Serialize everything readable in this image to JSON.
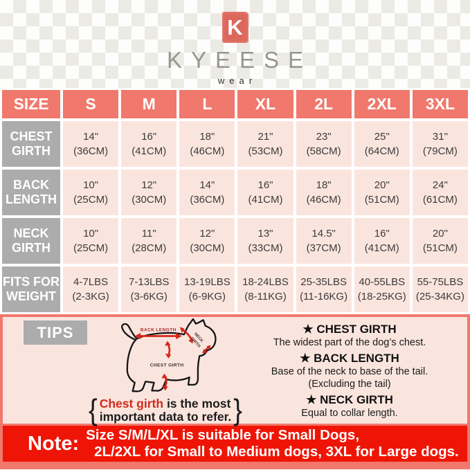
{
  "colors": {
    "accent_salmon": "#F0786C",
    "label_gray": "#ACACAC",
    "cell_pink": "#FAE5DE",
    "note_red": "#EF1506",
    "arrow_red": "#D3281C"
  },
  "brand": {
    "logo_letter": "K",
    "name": "KYEESE",
    "subtitle": "wear"
  },
  "size_table": {
    "corner_label": "SIZE",
    "sizes": [
      "S",
      "M",
      "L",
      "XL",
      "2L",
      "2XL",
      "3XL"
    ],
    "rows": [
      {
        "label_lines": [
          "CHEST",
          "GIRTH"
        ],
        "cells": [
          [
            "14\"",
            "(36CM)"
          ],
          [
            "16\"",
            "(41CM)"
          ],
          [
            "18\"",
            "(46CM)"
          ],
          [
            "21\"",
            "(53CM)"
          ],
          [
            "23\"",
            "(58CM)"
          ],
          [
            "25\"",
            "(64CM)"
          ],
          [
            "31\"",
            "(79CM)"
          ]
        ]
      },
      {
        "label_lines": [
          "BACK",
          "LENGTH"
        ],
        "cells": [
          [
            "10\"",
            "(25CM)"
          ],
          [
            "12\"",
            "(30CM)"
          ],
          [
            "14\"",
            "(36CM)"
          ],
          [
            "16\"",
            "(41CM)"
          ],
          [
            "18\"",
            "(46CM)"
          ],
          [
            "20\"",
            "(51CM)"
          ],
          [
            "24\"",
            "(61CM)"
          ]
        ]
      },
      {
        "label_lines": [
          "NECK",
          "GIRTH"
        ],
        "cells": [
          [
            "10\"",
            "(25CM)"
          ],
          [
            "11\"",
            "(28CM)"
          ],
          [
            "12\"",
            "(30CM)"
          ],
          [
            "13\"",
            "(33CM)"
          ],
          [
            "14.5\"",
            "(37CM)"
          ],
          [
            "16\"",
            "(41CM)"
          ],
          [
            "20\"",
            "(51CM)"
          ]
        ]
      },
      {
        "label_lines": [
          "FITS FOR",
          "WEIGHT"
        ],
        "cells": [
          [
            "4-7LBS",
            "(2-3KG)"
          ],
          [
            "7-13LBS",
            "(3-6KG)"
          ],
          [
            "13-19LBS",
            "(6-9KG)"
          ],
          [
            "18-24LBS",
            "(8-11KG)"
          ],
          [
            "25-35LBS",
            "(11-16KG)"
          ],
          [
            "40-55LBS",
            "(18-25KG)"
          ],
          [
            "55-75LBS",
            "(25-34KG)"
          ]
        ]
      }
    ]
  },
  "tips": {
    "label": "TIPS",
    "star": "★",
    "diagram": {
      "back_label": "BACK LENGTH",
      "chest_label": "CHEST GIRTH",
      "neck_label_line1": "NECK",
      "neck_label_line2": "GIRTH"
    },
    "callout": {
      "open_brace": "{",
      "highlight": "Chest girth",
      "rest": " is the most",
      "line2": "important data to refer.",
      "close_brace": "}"
    },
    "items": [
      {
        "title": "CHEST GIRTH",
        "desc": [
          "The widest part of the dog’s chest."
        ]
      },
      {
        "title": "BACK LENGTH",
        "desc": [
          "Base of the neck to base of the tail.",
          "(Excluding the tail)"
        ]
      },
      {
        "title": "NECK GIRTH",
        "desc": [
          "Equal to collar length."
        ]
      }
    ]
  },
  "note": {
    "label": "Note:",
    "line1": "Size S/M/L/XL is suitable for Small Dogs,",
    "line2": "2L/2XL for Small to Medium dogs, 3XL for Large dogs."
  },
  "chart_data": {
    "type": "table",
    "columns": [
      "SIZE",
      "S",
      "M",
      "L",
      "XL",
      "2L",
      "2XL",
      "3XL"
    ],
    "rows": [
      [
        "CHEST GIRTH",
        "14\" (36CM)",
        "16\" (41CM)",
        "18\" (46CM)",
        "21\" (53CM)",
        "23\" (58CM)",
        "25\" (64CM)",
        "31\" (79CM)"
      ],
      [
        "BACK LENGTH",
        "10\" (25CM)",
        "12\" (30CM)",
        "14\" (36CM)",
        "16\" (41CM)",
        "18\" (46CM)",
        "20\" (51CM)",
        "24\" (61CM)"
      ],
      [
        "NECK GIRTH",
        "10\" (25CM)",
        "11\" (28CM)",
        "12\" (30CM)",
        "13\" (33CM)",
        "14.5\" (37CM)",
        "16\" (41CM)",
        "20\" (51CM)"
      ],
      [
        "FITS FOR WEIGHT",
        "4-7LBS (2-3KG)",
        "7-13LBS (3-6KG)",
        "13-19LBS (6-9KG)",
        "18-24LBS (8-11KG)",
        "25-35LBS (11-16KG)",
        "40-55LBS (18-25KG)",
        "55-75LBS (25-34KG)"
      ]
    ]
  }
}
